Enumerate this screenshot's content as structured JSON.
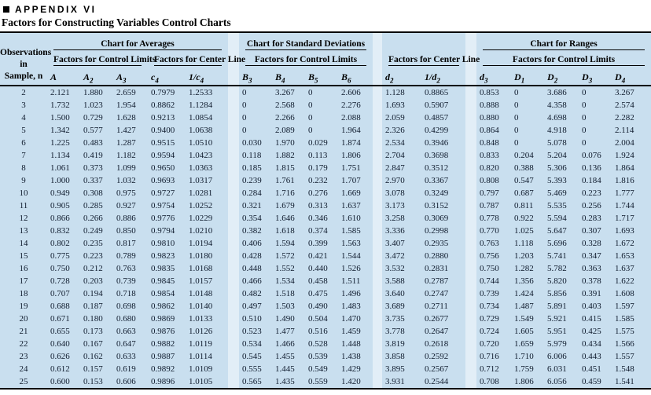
{
  "page": {
    "appendix_label": "APPENDIX VI",
    "subtitle": "Factors for Constructing Variables Control Charts"
  },
  "colors": {
    "table_bg": "#c9dfef",
    "gutter_bg": "#e2eef7",
    "rule": "#000000",
    "text": "#0f1b2d"
  },
  "table": {
    "corner": {
      "line1": "Observations",
      "line2": "in",
      "line3": "Sample, n"
    },
    "groups": {
      "averages": "Chart for Averages",
      "stddev": "Chart for Standard Deviations",
      "ranges": "Chart for Ranges"
    },
    "subheaders": {
      "avg_limits": "Factors for Control Limits",
      "avg_center": "Factors for Center Line",
      "sd_limits": "Factors for Control Limits",
      "rng_center": "Factors for Center Line",
      "rng_limits": "Factors for Control Limits"
    },
    "columns": [
      "A",
      "A_2",
      "A_3",
      "c_4",
      "1/c_4",
      "B_3",
      "B_4",
      "B_5",
      "B_6",
      "d_2",
      "1/d_2",
      "d_3",
      "D_1",
      "D_2",
      "D_3",
      "D_4"
    ],
    "rows": [
      [
        "2",
        "2.121",
        "1.880",
        "2.659",
        "0.7979",
        "1.2533",
        "0",
        "3.267",
        "0",
        "2.606",
        "1.128",
        "0.8865",
        "0.853",
        "0",
        "3.686",
        "0",
        "3.267"
      ],
      [
        "3",
        "1.732",
        "1.023",
        "1.954",
        "0.8862",
        "1.1284",
        "0",
        "2.568",
        "0",
        "2.276",
        "1.693",
        "0.5907",
        "0.888",
        "0",
        "4.358",
        "0",
        "2.574"
      ],
      [
        "4",
        "1.500",
        "0.729",
        "1.628",
        "0.9213",
        "1.0854",
        "0",
        "2.266",
        "0",
        "2.088",
        "2.059",
        "0.4857",
        "0.880",
        "0",
        "4.698",
        "0",
        "2.282"
      ],
      [
        "5",
        "1.342",
        "0.577",
        "1.427",
        "0.9400",
        "1.0638",
        "0",
        "2.089",
        "0",
        "1.964",
        "2.326",
        "0.4299",
        "0.864",
        "0",
        "4.918",
        "0",
        "2.114"
      ],
      [
        "6",
        "1.225",
        "0.483",
        "1.287",
        "0.9515",
        "1.0510",
        "0.030",
        "1.970",
        "0.029",
        "1.874",
        "2.534",
        "0.3946",
        "0.848",
        "0",
        "5.078",
        "0",
        "2.004"
      ],
      [
        "7",
        "1.134",
        "0.419",
        "1.182",
        "0.9594",
        "1.0423",
        "0.118",
        "1.882",
        "0.113",
        "1.806",
        "2.704",
        "0.3698",
        "0.833",
        "0.204",
        "5.204",
        "0.076",
        "1.924"
      ],
      [
        "8",
        "1.061",
        "0.373",
        "1.099",
        "0.9650",
        "1.0363",
        "0.185",
        "1.815",
        "0.179",
        "1.751",
        "2.847",
        "0.3512",
        "0.820",
        "0.388",
        "5.306",
        "0.136",
        "1.864"
      ],
      [
        "9",
        "1.000",
        "0.337",
        "1.032",
        "0.9693",
        "1.0317",
        "0.239",
        "1.761",
        "0.232",
        "1.707",
        "2.970",
        "0.3367",
        "0.808",
        "0.547",
        "5.393",
        "0.184",
        "1.816"
      ],
      [
        "10",
        "0.949",
        "0.308",
        "0.975",
        "0.9727",
        "1.0281",
        "0.284",
        "1.716",
        "0.276",
        "1.669",
        "3.078",
        "0.3249",
        "0.797",
        "0.687",
        "5.469",
        "0.223",
        "1.777"
      ],
      [
        "11",
        "0.905",
        "0.285",
        "0.927",
        "0.9754",
        "1.0252",
        "0.321",
        "1.679",
        "0.313",
        "1.637",
        "3.173",
        "0.3152",
        "0.787",
        "0.811",
        "5.535",
        "0.256",
        "1.744"
      ],
      [
        "12",
        "0.866",
        "0.266",
        "0.886",
        "0.9776",
        "1.0229",
        "0.354",
        "1.646",
        "0.346",
        "1.610",
        "3.258",
        "0.3069",
        "0.778",
        "0.922",
        "5.594",
        "0.283",
        "1.717"
      ],
      [
        "13",
        "0.832",
        "0.249",
        "0.850",
        "0.9794",
        "1.0210",
        "0.382",
        "1.618",
        "0.374",
        "1.585",
        "3.336",
        "0.2998",
        "0.770",
        "1.025",
        "5.647",
        "0.307",
        "1.693"
      ],
      [
        "14",
        "0.802",
        "0.235",
        "0.817",
        "0.9810",
        "1.0194",
        "0.406",
        "1.594",
        "0.399",
        "1.563",
        "3.407",
        "0.2935",
        "0.763",
        "1.118",
        "5.696",
        "0.328",
        "1.672"
      ],
      [
        "15",
        "0.775",
        "0.223",
        "0.789",
        "0.9823",
        "1.0180",
        "0.428",
        "1.572",
        "0.421",
        "1.544",
        "3.472",
        "0.2880",
        "0.756",
        "1.203",
        "5.741",
        "0.347",
        "1.653"
      ],
      [
        "16",
        "0.750",
        "0.212",
        "0.763",
        "0.9835",
        "1.0168",
        "0.448",
        "1.552",
        "0.440",
        "1.526",
        "3.532",
        "0.2831",
        "0.750",
        "1.282",
        "5.782",
        "0.363",
        "1.637"
      ],
      [
        "17",
        "0.728",
        "0.203",
        "0.739",
        "0.9845",
        "1.0157",
        "0.466",
        "1.534",
        "0.458",
        "1.511",
        "3.588",
        "0.2787",
        "0.744",
        "1.356",
        "5.820",
        "0.378",
        "1.622"
      ],
      [
        "18",
        "0.707",
        "0.194",
        "0.718",
        "0.9854",
        "1.0148",
        "0.482",
        "1.518",
        "0.475",
        "1.496",
        "3.640",
        "0.2747",
        "0.739",
        "1.424",
        "5.856",
        "0.391",
        "1.608"
      ],
      [
        "19",
        "0.688",
        "0.187",
        "0.698",
        "0.9862",
        "1.0140",
        "0.497",
        "1.503",
        "0.490",
        "1.483",
        "3.689",
        "0.2711",
        "0.734",
        "1.487",
        "5.891",
        "0.403",
        "1.597"
      ],
      [
        "20",
        "0.671",
        "0.180",
        "0.680",
        "0.9869",
        "1.0133",
        "0.510",
        "1.490",
        "0.504",
        "1.470",
        "3.735",
        "0.2677",
        "0.729",
        "1.549",
        "5.921",
        "0.415",
        "1.585"
      ],
      [
        "21",
        "0.655",
        "0.173",
        "0.663",
        "0.9876",
        "1.0126",
        "0.523",
        "1.477",
        "0.516",
        "1.459",
        "3.778",
        "0.2647",
        "0.724",
        "1.605",
        "5.951",
        "0.425",
        "1.575"
      ],
      [
        "22",
        "0.640",
        "0.167",
        "0.647",
        "0.9882",
        "1.0119",
        "0.534",
        "1.466",
        "0.528",
        "1.448",
        "3.819",
        "0.2618",
        "0.720",
        "1.659",
        "5.979",
        "0.434",
        "1.566"
      ],
      [
        "23",
        "0.626",
        "0.162",
        "0.633",
        "0.9887",
        "1.0114",
        "0.545",
        "1.455",
        "0.539",
        "1.438",
        "3.858",
        "0.2592",
        "0.716",
        "1.710",
        "6.006",
        "0.443",
        "1.557"
      ],
      [
        "24",
        "0.612",
        "0.157",
        "0.619",
        "0.9892",
        "1.0109",
        "0.555",
        "1.445",
        "0.549",
        "1.429",
        "3.895",
        "0.2567",
        "0.712",
        "1.759",
        "6.031",
        "0.451",
        "1.548"
      ],
      [
        "25",
        "0.600",
        "0.153",
        "0.606",
        "0.9896",
        "1.0105",
        "0.565",
        "1.435",
        "0.559",
        "1.420",
        "3.931",
        "0.2544",
        "0.708",
        "1.806",
        "6.056",
        "0.459",
        "1.541"
      ]
    ]
  }
}
